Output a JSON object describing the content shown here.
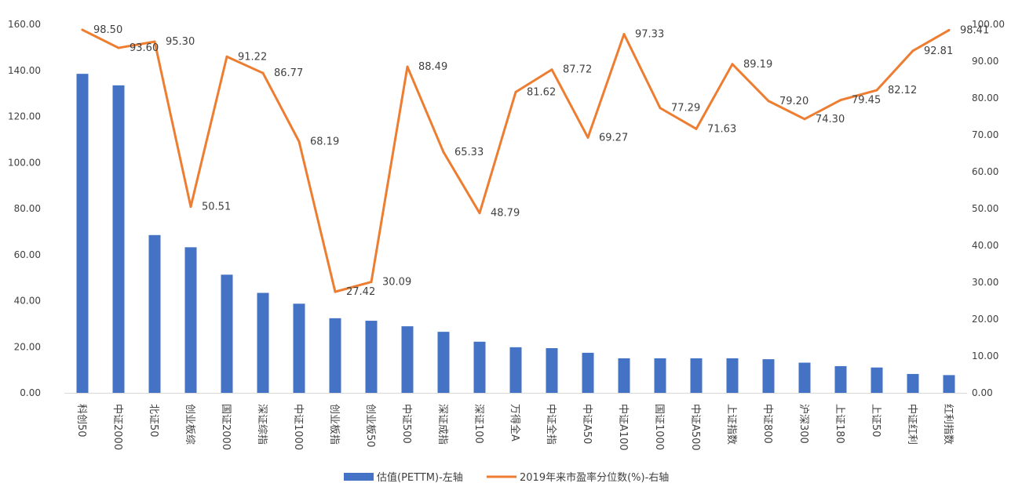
{
  "chart_data": {
    "type": "bar",
    "categories": [
      "科创50",
      "中证2000",
      "北证50",
      "创业板综",
      "国证2000",
      "深证综指",
      "中证1000",
      "创业板指",
      "创业板50",
      "中证500",
      "深证成指",
      "深证100",
      "万得全A",
      "中证全指",
      "中证A50",
      "中证A100",
      "国证1000",
      "中证A500",
      "上证指数",
      "中证800",
      "沪深300",
      "上证180",
      "上证50",
      "中证红利",
      "红利指数"
    ],
    "series": [
      {
        "name": "估值(PETTM)-左轴",
        "axis": "left",
        "type": "bar",
        "color": "#4472C4",
        "values": [
          138.5,
          133.5,
          68.5,
          63.2,
          51.3,
          43.4,
          38.7,
          32.4,
          31.3,
          28.9,
          26.5,
          22.2,
          19.8,
          19.4,
          17.4,
          15.0,
          15.0,
          15.0,
          15.0,
          14.6,
          13.1,
          11.6,
          11.0,
          8.2,
          7.7
        ]
      },
      {
        "name": "2019年来市盈率分位数(%)-右轴",
        "axis": "right",
        "type": "line",
        "color": "#ED7D31",
        "values": [
          98.5,
          93.6,
          95.3,
          50.51,
          91.22,
          86.77,
          68.19,
          27.42,
          30.09,
          88.49,
          65.33,
          48.79,
          81.62,
          87.72,
          69.27,
          97.33,
          77.29,
          71.63,
          89.19,
          79.2,
          74.3,
          79.45,
          82.12,
          92.81,
          98.41
        ],
        "labels": [
          "98.50",
          "93.60",
          "95.30",
          "50.51",
          "91.22",
          "86.77",
          "68.19",
          "27.42",
          "30.09",
          "88.49",
          "65.33",
          "48.79",
          "81.62",
          "87.72",
          "69.27",
          "97.33",
          "77.29",
          "71.63",
          "89.19",
          "79.20",
          "74.30",
          "79.45",
          "82.12",
          "92.81",
          "98.41"
        ]
      }
    ],
    "y_left": {
      "min": 0,
      "max": 160,
      "step": 20,
      "tick_labels": [
        "0.00",
        "20.00",
        "40.00",
        "60.00",
        "80.00",
        "100.00",
        "120.00",
        "140.00",
        "160.00"
      ]
    },
    "y_right": {
      "min": 0,
      "max": 100,
      "step": 10,
      "tick_labels": [
        "0.00",
        "10.00",
        "20.00",
        "30.00",
        "40.00",
        "50.00",
        "60.00",
        "70.00",
        "80.00",
        "90.00",
        "100.00"
      ]
    },
    "grid": false,
    "legend": "bottom-center"
  }
}
